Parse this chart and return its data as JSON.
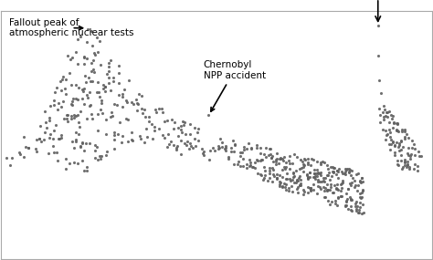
{
  "background_color": "#ffffff",
  "dot_color": "#606060",
  "dot_size": 5,
  "dot_alpha": 0.9,
  "grid_color": "#cccccc",
  "annotation1_text": "Fallout peak of\natmospheric nuclear tests",
  "annotation2_text": "Chernobyl\nNPP accident",
  "xlim": [
    0,
    1
  ],
  "ylim": [
    0,
    1
  ]
}
